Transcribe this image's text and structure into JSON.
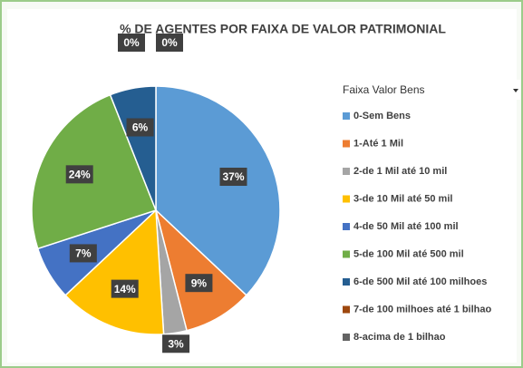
{
  "chart_data": {
    "type": "pie",
    "title": "% DE AGENTES POR FAIXA DE VALOR PATRIMONIAL",
    "legend_title": "Faixa Valor Bens",
    "legend_position": "right",
    "categories": [
      "0-Sem Bens",
      "1-Até 1 Mil",
      "2-de 1 Mil até 10 mil",
      "3-de 10 Mil até 50 mil",
      "4-de 50 Mil até 100 mil",
      "5-de 100 Mil até 500 mil",
      "6-de 500 Mil até  100 milhoes",
      "7-de 100 milhoes até 1 bilhao",
      "8-acima de 1 bilhao"
    ],
    "values": [
      37,
      9,
      3,
      14,
      7,
      24,
      6,
      0,
      0
    ],
    "value_labels": [
      "37%",
      "9%",
      "3%",
      "14%",
      "7%",
      "24%",
      "6%",
      "0%",
      "0%"
    ],
    "colors": [
      "#5b9bd5",
      "#ed7d31",
      "#a5a5a5",
      "#ffc000",
      "#4472c4",
      "#70ad47",
      "#255e91",
      "#9e480e",
      "#636363"
    ]
  }
}
